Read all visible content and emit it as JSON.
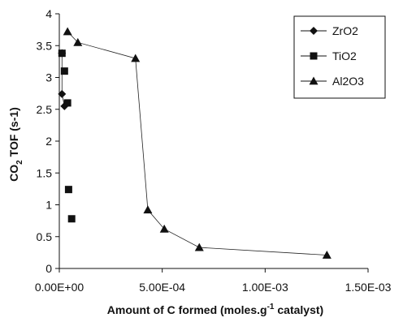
{
  "chart_data": {
    "type": "scatter",
    "xlabel": {
      "pre": "Amount of C formed (moles.g",
      "sup": "-1",
      "post": " catalyst)"
    },
    "ylabel": {
      "pre": "CO",
      "sub": "2",
      "post": " TOF (s-1)"
    },
    "xlim": [
      0,
      0.0015
    ],
    "ylim": [
      0,
      4
    ],
    "xticks": [
      {
        "value": 0,
        "label": "0.00E+00"
      },
      {
        "value": 0.0005,
        "label": "5.00E-04"
      },
      {
        "value": 0.001,
        "label": "1.00E-03"
      },
      {
        "value": 0.0015,
        "label": "1.50E-03"
      }
    ],
    "yticks": [
      {
        "value": 0,
        "label": "0"
      },
      {
        "value": 0.5,
        "label": "0.5"
      },
      {
        "value": 1,
        "label": "1"
      },
      {
        "value": 1.5,
        "label": "1.5"
      },
      {
        "value": 2,
        "label": "2"
      },
      {
        "value": 2.5,
        "label": "2.5"
      },
      {
        "value": 3,
        "label": "3"
      },
      {
        "value": 3.5,
        "label": "3.5"
      },
      {
        "value": 4,
        "label": "4"
      }
    ],
    "legend_position": "top-right",
    "series": [
      {
        "name": "ZrO2",
        "marker": "diamond",
        "line": true,
        "x": [
          1.3e-05,
          1.3e-05,
          2.5e-05
        ],
        "y": [
          3.38,
          2.74,
          2.55
        ]
      },
      {
        "name": "TiO2",
        "marker": "square",
        "line": false,
        "x": [
          1.3e-05,
          2.5e-05,
          4e-05,
          4.5e-05,
          6e-05
        ],
        "y": [
          3.38,
          3.1,
          2.6,
          1.24,
          0.78
        ]
      },
      {
        "name": "Al2O3",
        "marker": "triangle",
        "line": true,
        "x": [
          4e-05,
          9e-05,
          0.00037,
          0.00043,
          0.00051,
          0.00068,
          0.0013
        ],
        "y": [
          3.72,
          3.55,
          3.3,
          0.92,
          0.62,
          0.33,
          0.21
        ]
      }
    ]
  }
}
